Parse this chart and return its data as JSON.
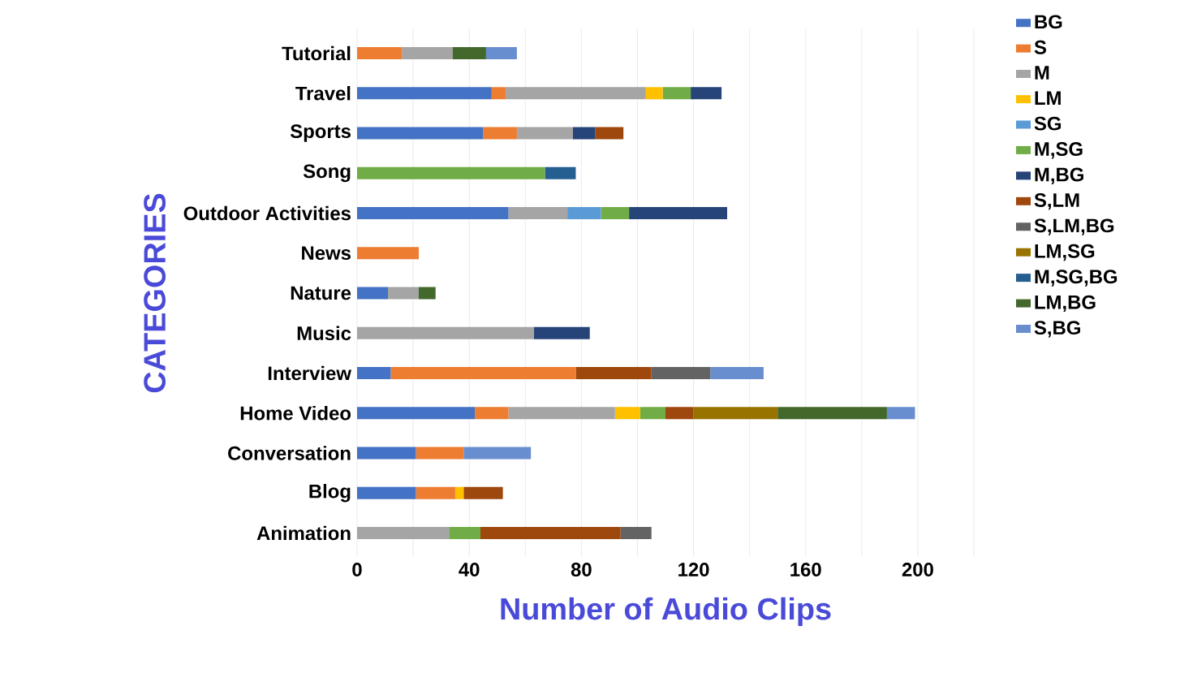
{
  "chart_data": {
    "type": "bar",
    "orientation": "horizontal",
    "stacked": true,
    "xlabel": "Number of Audio Clips",
    "ylabel": "CATEGORIES",
    "categories": [
      "Tutorial",
      "Travel",
      "Sports",
      "Song",
      "Outdoor Activities",
      "News",
      "Nature",
      "Music",
      "Interview",
      "Home Video",
      "Conversation",
      "Blog",
      "Animation"
    ],
    "series": [
      {
        "name": "BG",
        "color": "#4472c4",
        "values": [
          0,
          48,
          45,
          0,
          54,
          0,
          11,
          0,
          12,
          42,
          21,
          21,
          0
        ]
      },
      {
        "name": "S",
        "color": "#ed7d31",
        "values": [
          16,
          5,
          12,
          0,
          0,
          22,
          0,
          0,
          66,
          12,
          17,
          14,
          0
        ]
      },
      {
        "name": "M",
        "color": "#a5a5a5",
        "values": [
          18,
          50,
          20,
          0,
          21,
          0,
          11,
          63,
          0,
          38,
          0,
          0,
          33
        ]
      },
      {
        "name": "LM",
        "color": "#ffc000",
        "values": [
          0,
          6,
          0,
          0,
          0,
          0,
          0,
          0,
          0,
          9,
          0,
          3,
          0
        ]
      },
      {
        "name": "SG",
        "color": "#5b9bd5",
        "values": [
          0,
          0,
          0,
          0,
          12,
          0,
          0,
          0,
          0,
          0,
          0,
          0,
          0
        ]
      },
      {
        "name": "M,SG",
        "color": "#70ad47",
        "values": [
          0,
          10,
          0,
          67,
          10,
          0,
          0,
          0,
          0,
          9,
          0,
          0,
          11
        ]
      },
      {
        "name": "M,BG",
        "color": "#264478",
        "values": [
          0,
          11,
          8,
          0,
          35,
          0,
          0,
          20,
          0,
          0,
          0,
          0,
          0
        ]
      },
      {
        "name": "S,LM",
        "color": "#9e480e",
        "values": [
          0,
          0,
          10,
          0,
          0,
          0,
          0,
          0,
          27,
          10,
          0,
          14,
          50
        ]
      },
      {
        "name": "S,LM,BG",
        "color": "#636363",
        "values": [
          0,
          0,
          0,
          0,
          0,
          0,
          0,
          0,
          21,
          0,
          0,
          0,
          11
        ]
      },
      {
        "name": "LM,SG",
        "color": "#997300",
        "values": [
          0,
          0,
          0,
          0,
          0,
          0,
          0,
          0,
          0,
          30,
          0,
          0,
          0
        ]
      },
      {
        "name": "M,SG,BG",
        "color": "#255e91",
        "values": [
          0,
          0,
          0,
          11,
          0,
          0,
          0,
          0,
          0,
          0,
          0,
          0,
          0
        ]
      },
      {
        "name": "LM,BG",
        "color": "#43682b",
        "values": [
          12,
          0,
          0,
          0,
          0,
          0,
          6,
          0,
          0,
          39,
          0,
          0,
          0
        ]
      },
      {
        "name": "S,BG",
        "color": "#698ed0",
        "values": [
          11,
          0,
          0,
          0,
          0,
          0,
          0,
          0,
          19,
          10,
          24,
          0,
          0
        ]
      }
    ],
    "xlim": [
      0,
      220
    ],
    "xticks": [
      0,
      {
        "value": 20,
        "label": null
      },
      40,
      {
        "value": 60,
        "label": null
      },
      80,
      {
        "value": 100,
        "label": null
      },
      120,
      {
        "value": 140,
        "label": null
      },
      160,
      {
        "value": 180,
        "label": null
      },
      200,
      {
        "value": 220,
        "label": null
      }
    ],
    "grid": "x",
    "legend": "right"
  }
}
